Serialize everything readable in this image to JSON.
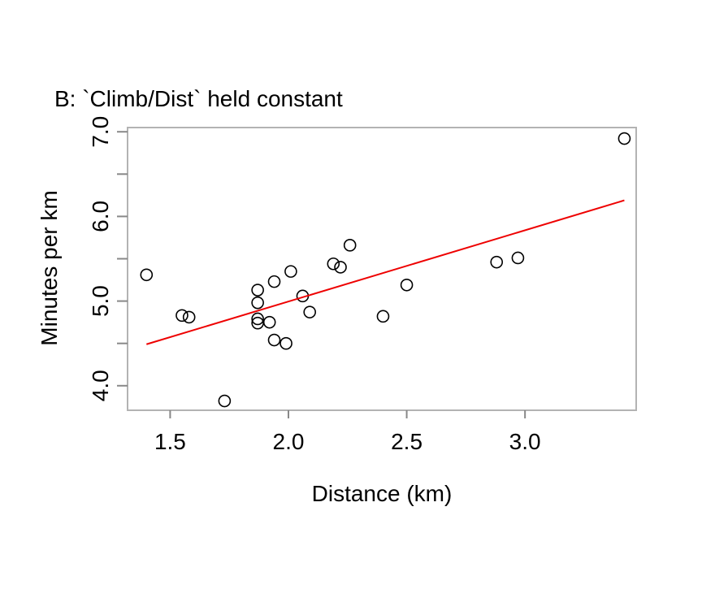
{
  "chart_data": {
    "type": "scatter",
    "title": "B: `Climb/Dist` held constant",
    "xlabel": "Distance (km)",
    "ylabel": "Minutes per km",
    "xlim": [
      1.32,
      3.47
    ],
    "ylim": [
      3.71,
      7.05
    ],
    "xticks": [
      1.5,
      2.0,
      2.5,
      3.0
    ],
    "xtick_labels": [
      "1.5",
      "2.0",
      "2.5",
      "3.0"
    ],
    "yticks": [
      4.0,
      5.0,
      6.0,
      7.0
    ],
    "ytick_labels": [
      "4.0",
      "5.0",
      "6.0",
      "7.0"
    ],
    "y_minor_ticks": [
      4.5,
      5.5,
      6.5
    ],
    "grid": false,
    "legend": "none",
    "points": [
      {
        "x": 1.4,
        "y": 5.31
      },
      {
        "x": 1.55,
        "y": 4.83
      },
      {
        "x": 1.58,
        "y": 4.81
      },
      {
        "x": 1.73,
        "y": 3.82
      },
      {
        "x": 1.87,
        "y": 5.13
      },
      {
        "x": 1.87,
        "y": 4.98
      },
      {
        "x": 1.87,
        "y": 4.79
      },
      {
        "x": 1.87,
        "y": 4.74
      },
      {
        "x": 1.92,
        "y": 4.75
      },
      {
        "x": 1.94,
        "y": 5.23
      },
      {
        "x": 1.94,
        "y": 4.54
      },
      {
        "x": 1.99,
        "y": 4.5
      },
      {
        "x": 2.01,
        "y": 5.35
      },
      {
        "x": 2.06,
        "y": 5.06
      },
      {
        "x": 2.09,
        "y": 4.87
      },
      {
        "x": 2.19,
        "y": 5.44
      },
      {
        "x": 2.22,
        "y": 5.4
      },
      {
        "x": 2.26,
        "y": 5.66
      },
      {
        "x": 2.4,
        "y": 4.82
      },
      {
        "x": 2.5,
        "y": 5.19
      },
      {
        "x": 2.88,
        "y": 5.46
      },
      {
        "x": 2.97,
        "y": 5.51
      },
      {
        "x": 3.42,
        "y": 6.92
      }
    ],
    "fit_line": {
      "x": [
        1.4,
        3.42
      ],
      "y": [
        4.49,
        6.19
      ]
    },
    "colors": {
      "points": "#000000",
      "fit_line": "#ee0000",
      "frame": "#b3b3b3",
      "ticks": "#888888"
    }
  }
}
